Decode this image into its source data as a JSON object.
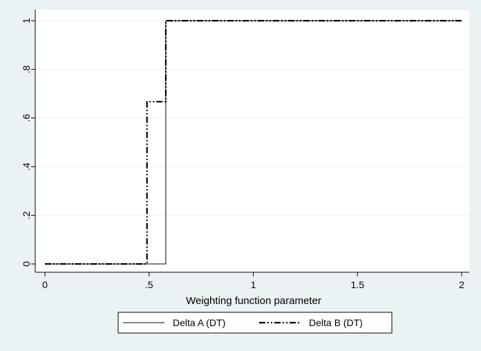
{
  "chart_data": {
    "type": "line",
    "title": "",
    "xlabel": "Weighting function parameter",
    "ylabel": "",
    "xlim": [
      0,
      2
    ],
    "ylim": [
      0,
      1
    ],
    "x_ticks": [
      0,
      0.5,
      1,
      1.5,
      2
    ],
    "x_tick_labels": [
      "0",
      ".5",
      "1",
      "1.5",
      "2"
    ],
    "y_ticks": [
      0,
      0.2,
      0.4,
      0.6,
      0.8,
      1
    ],
    "y_tick_labels": [
      "0",
      ".2",
      ".4",
      ".6",
      ".8",
      "1"
    ],
    "grid": "horizontal",
    "legend_position": "bottom",
    "series": [
      {
        "name": "Delta A (DT)",
        "line_style": "solid",
        "step": true,
        "x": [
          0,
          0.58,
          0.58,
          2
        ],
        "y": [
          0,
          0,
          1,
          1
        ]
      },
      {
        "name": "Delta B (DT)",
        "line_style": "dash-dot-dot",
        "step": true,
        "x": [
          0,
          0.49,
          0.49,
          0.58,
          0.58,
          2
        ],
        "y": [
          0,
          0,
          0.667,
          0.667,
          1,
          1
        ]
      }
    ]
  },
  "colors": {
    "background": "#eaf2f3",
    "plot_area": "#ffffff",
    "grid": "#eaf2f3",
    "line": "#000000"
  }
}
